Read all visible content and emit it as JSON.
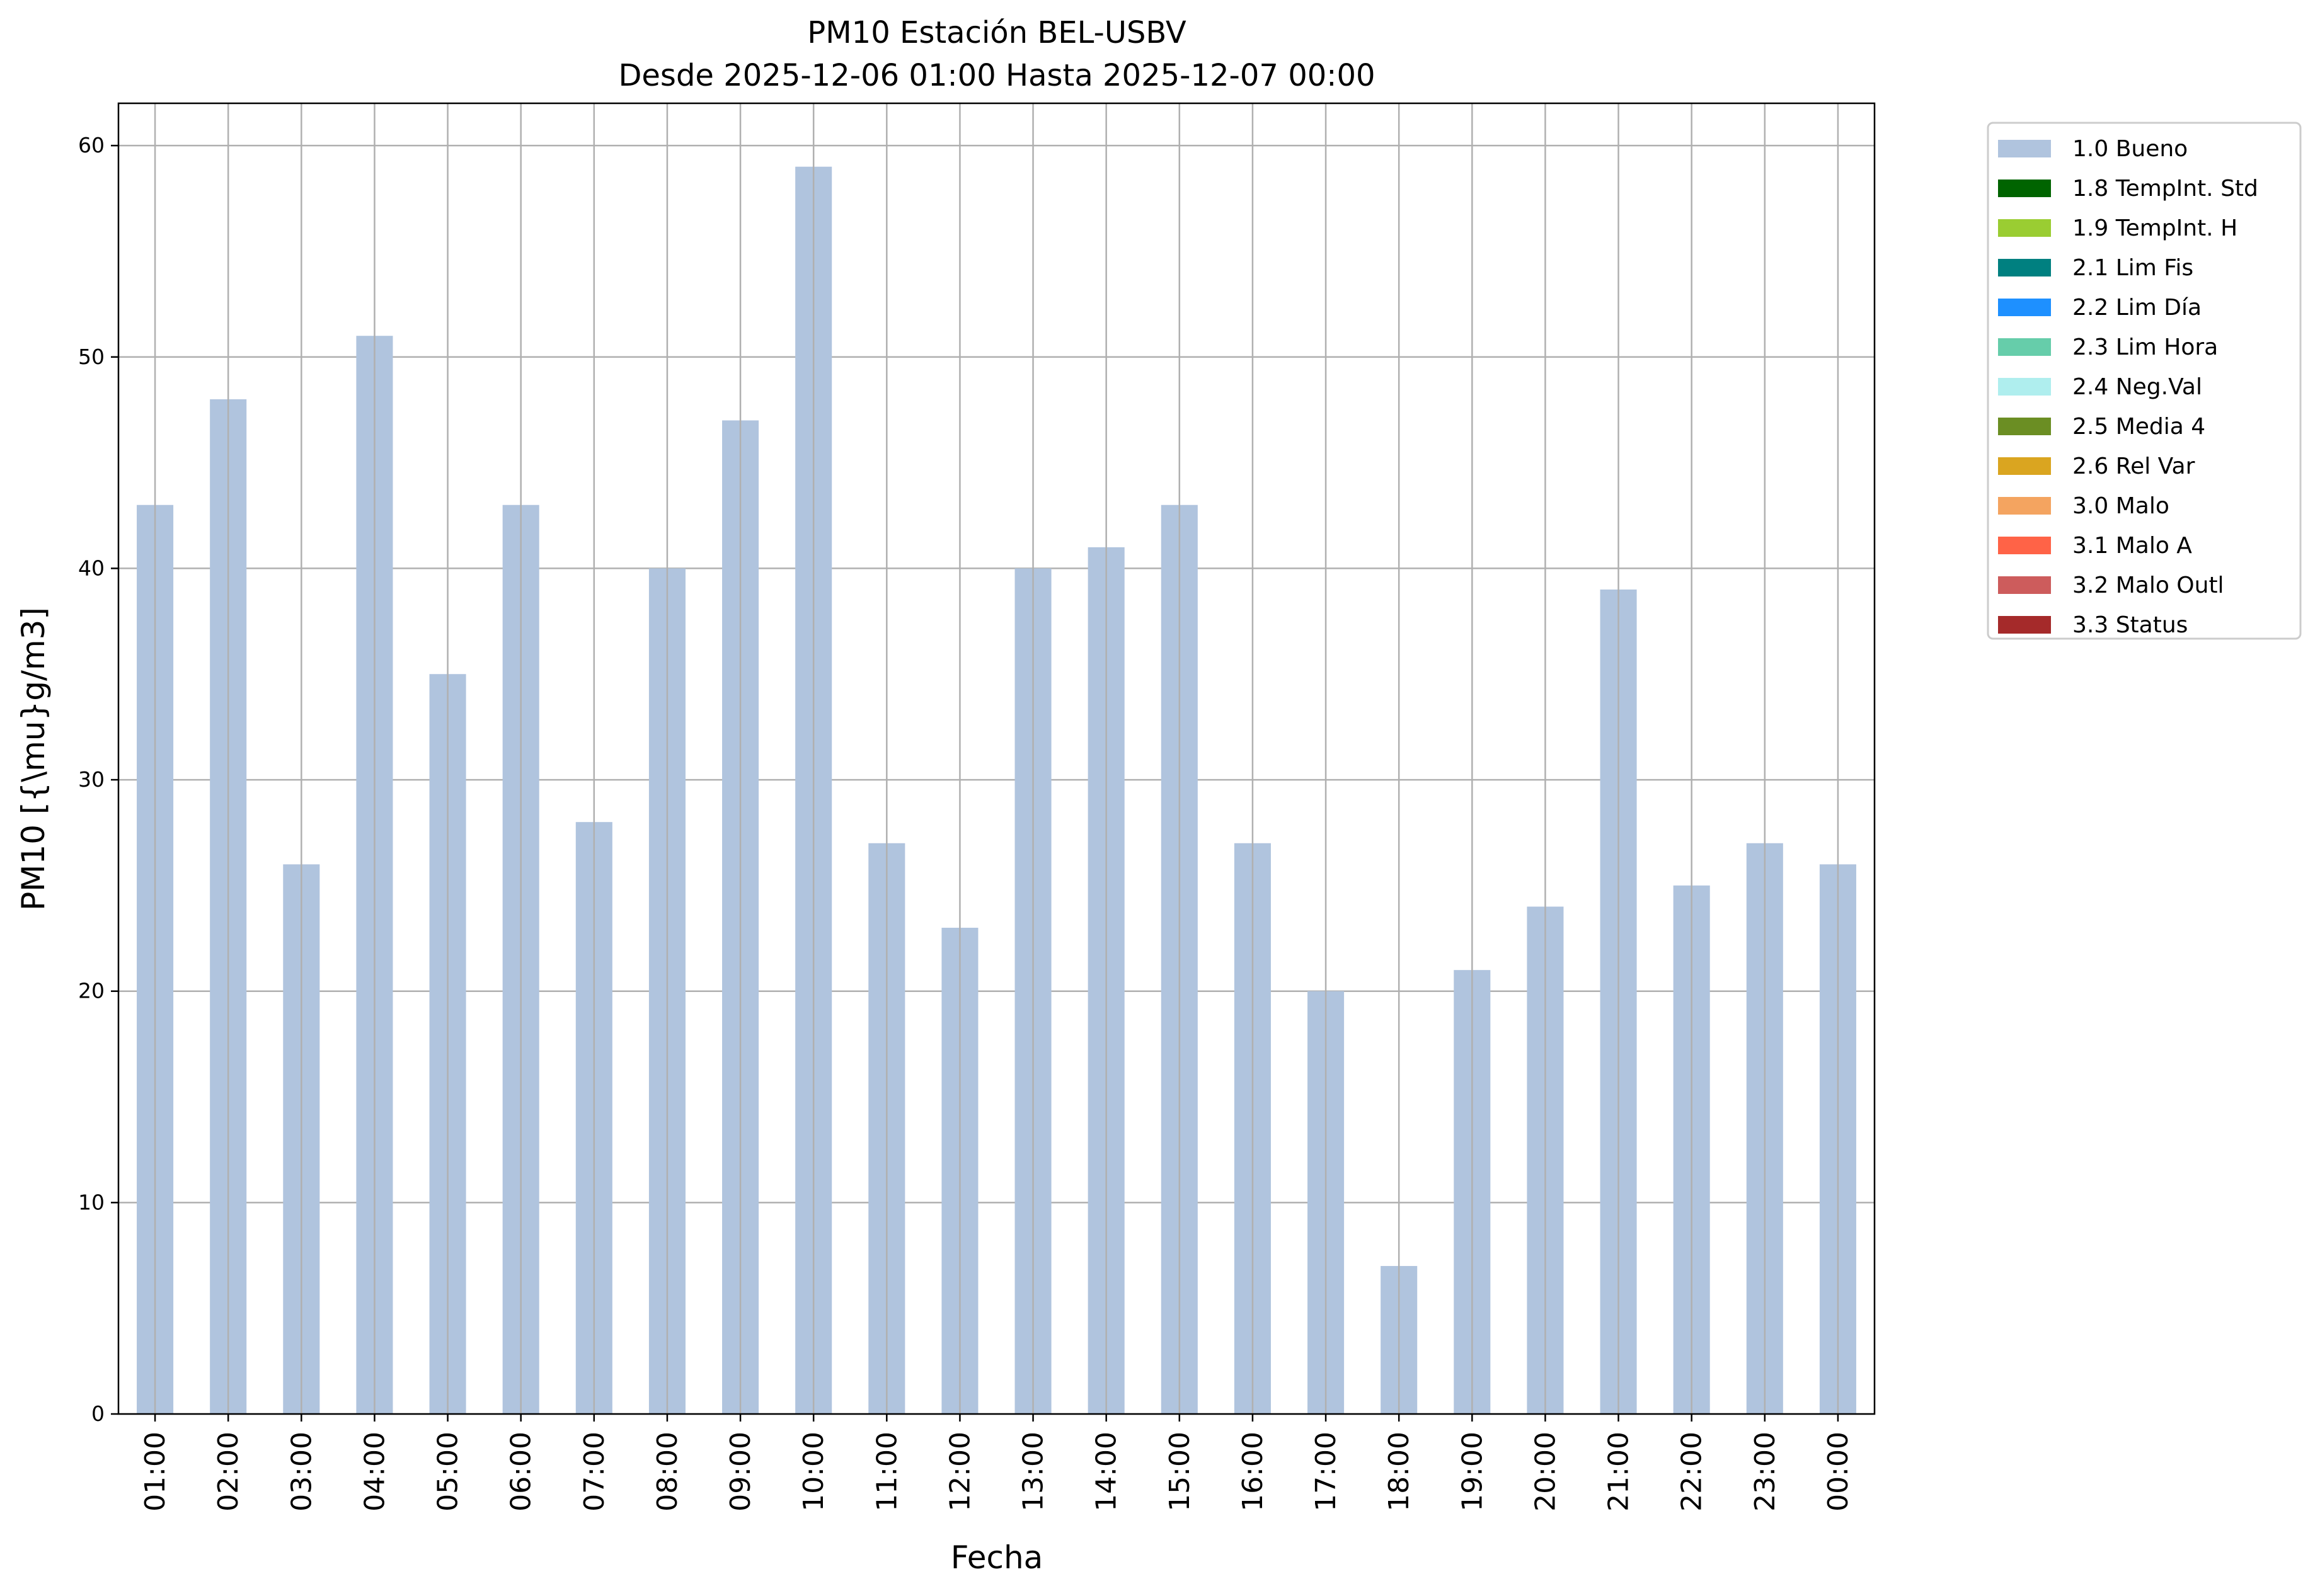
{
  "chart_data": {
    "type": "bar",
    "title": "PM10 Estación BEL-USBV",
    "subtitle": "Desde 2025-12-06 01:00 Hasta 2025-12-07 00:00",
    "xlabel": "Fecha",
    "ylabel": "PM10 [{\\mu}g/m3]",
    "ylim": [
      0,
      62
    ],
    "yticks": [
      0,
      10,
      20,
      30,
      40,
      50,
      60
    ],
    "grid": true,
    "legend_position": "outside-top-right",
    "categories": [
      "01:00",
      "02:00",
      "03:00",
      "04:00",
      "05:00",
      "06:00",
      "07:00",
      "08:00",
      "09:00",
      "10:00",
      "11:00",
      "12:00",
      "13:00",
      "14:00",
      "15:00",
      "16:00",
      "17:00",
      "18:00",
      "19:00",
      "20:00",
      "21:00",
      "22:00",
      "23:00",
      "00:00"
    ],
    "series": [
      {
        "name": "1.0 Bueno",
        "color": "#b0c4de",
        "values": [
          43,
          48,
          26,
          51,
          35,
          43,
          28,
          40,
          47,
          59,
          27,
          23,
          40,
          41,
          43,
          27,
          20,
          7,
          21,
          24,
          39,
          25,
          27,
          26
        ]
      }
    ],
    "legend": [
      {
        "label": "1.0 Bueno",
        "color": "#b0c4de"
      },
      {
        "label": "1.8 TempInt. Std",
        "color": "#006400"
      },
      {
        "label": "1.9 TempInt. H",
        "color": "#9acd32"
      },
      {
        "label": "2.1 Lim Fis",
        "color": "#008080"
      },
      {
        "label": "2.2 Lim Día",
        "color": "#1e90ff"
      },
      {
        "label": "2.3 Lim Hora",
        "color": "#66cdaa"
      },
      {
        "label": "2.4 Neg.Val",
        "color": "#afeeee"
      },
      {
        "label": "2.5 Media 4",
        "color": "#6b8e23"
      },
      {
        "label": "2.6 Rel Var",
        "color": "#daa520"
      },
      {
        "label": "3.0 Malo",
        "color": "#f4a460"
      },
      {
        "label": "3.1 Malo A",
        "color": "#ff6347"
      },
      {
        "label": "3.2 Malo Outl",
        "color": "#cd5c5c"
      },
      {
        "label": "3.3 Status",
        "color": "#a52a2a"
      }
    ]
  }
}
